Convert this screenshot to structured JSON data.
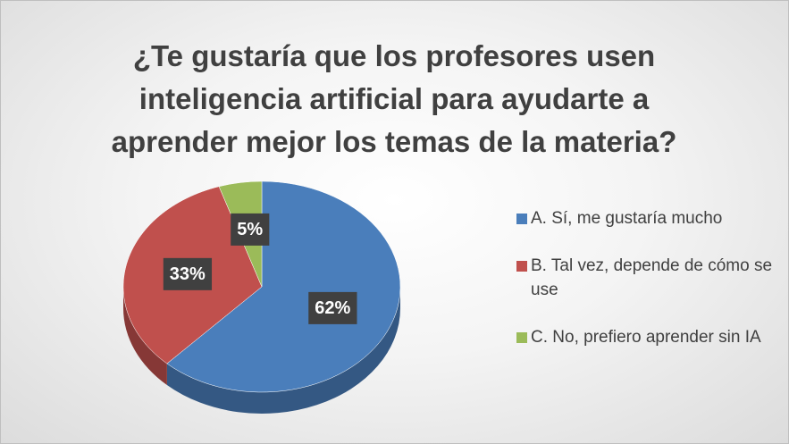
{
  "chart_data": {
    "type": "pie",
    "title": "¿Te gustaría que los profesores usen inteligencia artificial para ayudarte a aprender mejor los temas de la materia?",
    "categories": [
      "A. Sí, me gustaría mucho",
      "B. Tal vez, depende de cómo se use",
      "C. No, prefiero aprender sin IA"
    ],
    "values": [
      62,
      33,
      5
    ],
    "value_labels": [
      "62%",
      "33%",
      "5%"
    ],
    "colors": [
      "#4a7ebb",
      "#c0504d",
      "#9bbb59"
    ],
    "legend": "right"
  }
}
